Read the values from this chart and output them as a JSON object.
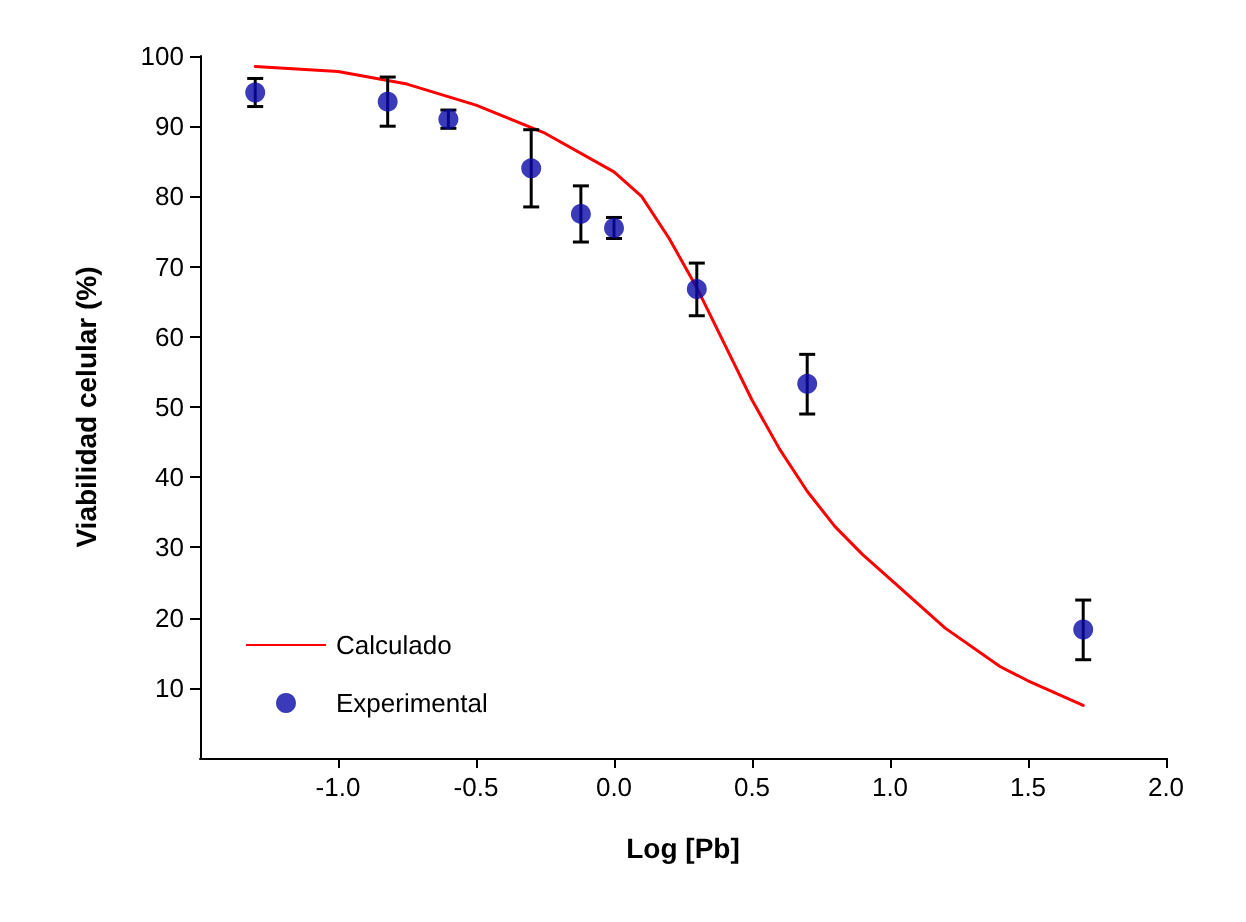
{
  "chart_data": {
    "type": "scatter",
    "xlabel": "Log [Pb]",
    "ylabel": "Viabilidad celular (%)",
    "xlim": [
      -1.5,
      2.0
    ],
    "ylim": [
      0,
      100
    ],
    "xticks": [
      {
        "value": -1,
        "label": "-1.0"
      },
      {
        "value": -0.5,
        "label": "-0.5"
      },
      {
        "value": 0,
        "label": "0.0"
      },
      {
        "value": 0.5,
        "label": "0.5"
      },
      {
        "value": 1,
        "label": "1.0"
      },
      {
        "value": 1.5,
        "label": "1.5"
      },
      {
        "value": 2,
        "label": "2.0"
      }
    ],
    "yticks": [
      10,
      20,
      30,
      40,
      50,
      60,
      70,
      80,
      90,
      100
    ],
    "legend": "bottom left",
    "grid": false,
    "series": [
      {
        "name": "Calculado",
        "type": "line",
        "color": "#ff0000",
        "marker": "none",
        "line_style": "solid",
        "x": [
          -1.3,
          -1.0,
          -0.75,
          -0.5,
          -0.25,
          0,
          0.1,
          0.2,
          0.3,
          0.4,
          0.5,
          0.6,
          0.7,
          0.8,
          0.9,
          1.0,
          1.2,
          1.4,
          1.5,
          1.7
        ],
        "values": [
          98.5,
          97.8,
          96,
          93,
          89,
          83.5,
          80,
          74,
          67,
          59,
          51,
          44,
          38,
          33,
          29,
          25.5,
          18.5,
          13,
          11,
          7.5
        ]
      },
      {
        "name": "Experimental",
        "color": "#0a0aa8",
        "marker": "circle",
        "x": [
          -1.3,
          -0.82,
          -0.6,
          -0.3,
          -0.12,
          0,
          0.3,
          0.7,
          1.7
        ],
        "values": [
          94.8,
          93.5,
          91,
          84,
          77.5,
          75.5,
          66.8,
          53.3,
          18.3
        ],
        "errors": [
          2,
          [
            90,
            97
          ],
          1.3,
          [
            78.5,
            89.5
          ],
          [
            73.5,
            81.5
          ],
          1.5,
          [
            63,
            70.5
          ],
          [
            49,
            57.5
          ],
          [
            14,
            22.5
          ]
        ]
      }
    ]
  }
}
